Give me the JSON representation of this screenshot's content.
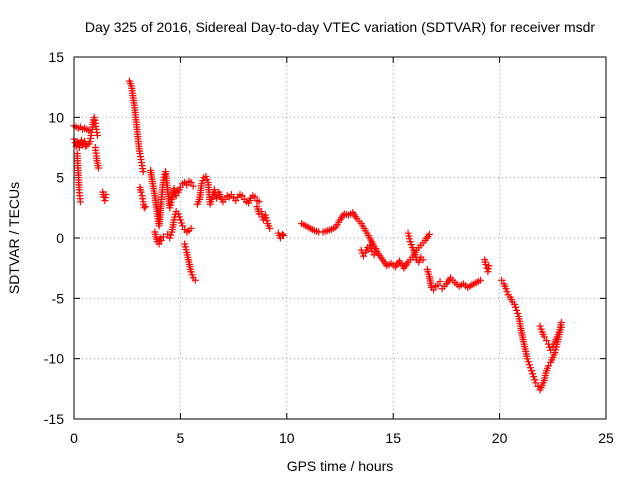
{
  "chart_data": {
    "type": "scatter",
    "title": "Day 325 of 2016, Sidereal Day-to-day VTEC variation (SDTVAR) for receiver msdr",
    "xlabel": "GPS time / hours",
    "ylabel": "SDTVAR / TECUs",
    "xlim": [
      0,
      25
    ],
    "ylim": [
      -15,
      15
    ],
    "xticks": [
      0,
      5,
      10,
      15,
      20,
      25
    ],
    "yticks": [
      -15,
      -10,
      -5,
      0,
      5,
      10,
      15
    ],
    "xtick_labels": [
      "0",
      "5",
      "10",
      "15",
      "20",
      "25"
    ],
    "ytick_labels": [
      "-15",
      "-10",
      "-5",
      "0",
      "5",
      "10",
      "15"
    ],
    "grid": true,
    "marker": "+",
    "color": "#ff0000",
    "segments": [
      {
        "name": "s1",
        "x": [
          0.0,
          0.1,
          0.2,
          0.3,
          0.4,
          0.5,
          0.6,
          0.7
        ],
        "y": [
          9.3,
          9.2,
          9.1,
          9.2,
          9.0,
          9.1,
          9.0,
          8.9
        ]
      },
      {
        "name": "s2",
        "x": [
          0.0,
          0.05,
          0.1,
          0.15,
          0.2,
          0.25,
          0.3,
          0.35,
          0.4,
          0.45,
          0.5,
          0.55,
          0.6
        ],
        "y": [
          8.2,
          7.9,
          7.6,
          8.0,
          7.8,
          7.5,
          7.9,
          8.1,
          7.7,
          7.8,
          8.0,
          7.6,
          7.7
        ]
      },
      {
        "name": "s3",
        "x": [
          0.15,
          0.18,
          0.21,
          0.24,
          0.27,
          0.3
        ],
        "y": [
          7.0,
          6.0,
          5.0,
          4.0,
          3.5,
          3.0
        ]
      },
      {
        "name": "s4",
        "x": [
          0.7,
          0.75,
          0.8,
          0.85,
          0.9,
          0.95,
          1.0,
          1.05,
          1.1
        ],
        "y": [
          7.8,
          8.0,
          8.5,
          9.0,
          9.6,
          10.0,
          9.5,
          9.0,
          8.5
        ]
      },
      {
        "name": "s5",
        "x": [
          1.0,
          1.05,
          1.1,
          1.15
        ],
        "y": [
          7.5,
          6.8,
          6.2,
          5.8
        ]
      },
      {
        "name": "s6",
        "x": [
          1.35,
          1.4,
          1.45,
          1.5
        ],
        "y": [
          3.8,
          3.4,
          3.1,
          3.6
        ]
      },
      {
        "name": "s7",
        "x": [
          2.6,
          2.7,
          2.75,
          2.8,
          2.85,
          2.9,
          2.95,
          3.0,
          3.05,
          3.1,
          3.15,
          3.2,
          3.25
        ],
        "y": [
          13.0,
          12.6,
          12.0,
          11.4,
          10.8,
          10.0,
          9.2,
          8.4,
          7.6,
          7.0,
          6.5,
          6.0,
          5.5
        ]
      },
      {
        "name": "s8",
        "x": [
          3.1,
          3.15,
          3.2,
          3.25,
          3.3,
          3.35
        ],
        "y": [
          4.2,
          3.8,
          3.5,
          3.0,
          2.5,
          2.6
        ]
      },
      {
        "name": "s9",
        "x": [
          3.6,
          3.7,
          3.8,
          3.9,
          4.0,
          4.1,
          4.2,
          4.3,
          4.4,
          4.5,
          4.6,
          4.7,
          4.8,
          4.9,
          5.0,
          5.1,
          5.2,
          5.3,
          5.4,
          5.5,
          5.6
        ],
        "y": [
          5.6,
          4.5,
          3.5,
          2.2,
          1.0,
          3.0,
          4.8,
          5.5,
          4.0,
          2.5,
          3.2,
          4.1,
          3.5,
          3.8,
          4.2,
          4.5,
          4.6,
          4.4,
          4.7,
          4.6,
          4.3
        ]
      },
      {
        "name": "s10",
        "x": [
          3.8,
          3.9,
          4.0,
          4.05,
          4.1,
          4.2
        ],
        "y": [
          0.5,
          -0.3,
          -0.5,
          0.0,
          -0.2,
          0.1
        ]
      },
      {
        "name": "s11",
        "x": [
          4.4,
          4.5,
          4.6,
          4.7,
          4.8,
          4.9,
          5.0,
          5.1,
          5.2,
          5.3,
          5.4,
          5.5
        ],
        "y": [
          0.3,
          0.0,
          0.5,
          1.5,
          2.2,
          2.0,
          1.5,
          1.0,
          0.7,
          0.5,
          0.6,
          0.8
        ]
      },
      {
        "name": "s12",
        "x": [
          5.2,
          5.3,
          5.4,
          5.5,
          5.6,
          5.7
        ],
        "y": [
          -0.5,
          -1.2,
          -2.0,
          -2.8,
          -3.3,
          -3.5
        ]
      },
      {
        "name": "s13",
        "x": [
          5.8,
          5.9,
          6.0,
          6.1,
          6.2,
          6.3,
          6.4,
          6.5,
          6.6,
          6.7,
          6.8,
          6.9,
          7.0,
          7.1,
          7.2,
          7.3,
          7.4,
          7.5,
          7.6,
          7.7,
          7.8,
          7.9,
          8.0,
          8.1,
          8.2,
          8.3,
          8.4,
          8.5,
          8.6,
          8.7
        ],
        "y": [
          2.8,
          3.2,
          4.5,
          5.0,
          5.1,
          4.6,
          2.8,
          3.4,
          4.0,
          3.3,
          3.8,
          3.4,
          3.0,
          3.2,
          3.5,
          3.4,
          3.6,
          3.3,
          3.1,
          3.4,
          3.6,
          3.5,
          3.2,
          3.0,
          2.9,
          3.3,
          3.5,
          3.4,
          3.1,
          3.0
        ]
      },
      {
        "name": "s14",
        "x": [
          8.6,
          8.7,
          8.8,
          8.9,
          9.0,
          9.1,
          9.2
        ],
        "y": [
          2.6,
          2.0,
          2.2,
          1.5,
          1.9,
          1.2,
          0.8
        ]
      },
      {
        "name": "s15",
        "x": [
          9.6,
          9.7,
          9.8,
          9.85
        ],
        "y": [
          0.4,
          0.0,
          0.3,
          0.2
        ]
      },
      {
        "name": "s16",
        "x": [
          10.7,
          10.9,
          11.1,
          11.3,
          11.5,
          11.7,
          11.9,
          12.1,
          12.3,
          12.5,
          12.7,
          12.9,
          13.1,
          13.3,
          13.5,
          13.7,
          13.9,
          14.1,
          14.3,
          14.5,
          14.7,
          14.9,
          15.1,
          15.3,
          15.5,
          15.7,
          15.9,
          16.1,
          16.3,
          16.5,
          16.7
        ],
        "y": [
          1.2,
          1.0,
          0.8,
          0.6,
          0.5,
          0.5,
          0.6,
          0.7,
          0.9,
          1.5,
          2.0,
          1.9,
          2.1,
          1.6,
          1.2,
          0.6,
          0.0,
          -0.7,
          -1.3,
          -1.8,
          -2.3,
          -2.1,
          -2.4,
          -1.9,
          -2.5,
          -2.0,
          -1.6,
          -1.0,
          -0.6,
          -0.2,
          0.3
        ]
      },
      {
        "name": "s17",
        "x": [
          13.5,
          13.6,
          13.7,
          13.8,
          13.9,
          14.0,
          14.1,
          14.2
        ],
        "y": [
          -1.0,
          -1.5,
          -1.2,
          -0.8,
          -0.6,
          -1.1,
          -1.4,
          -0.9
        ]
      },
      {
        "name": "s18",
        "x": [
          15.7,
          15.8,
          15.9,
          16.0,
          16.1,
          16.2,
          16.3,
          16.4
        ],
        "y": [
          0.4,
          -0.3,
          -0.8,
          -1.2,
          -1.8,
          -2.0,
          -1.6,
          -1.8
        ]
      },
      {
        "name": "s19",
        "x": [
          16.6,
          16.7,
          16.8,
          16.9,
          17.0,
          17.1,
          17.2
        ],
        "y": [
          -2.6,
          -3.2,
          -4.1,
          -4.3,
          -4.0,
          -3.9,
          -3.6
        ]
      },
      {
        "name": "s20",
        "x": [
          17.3,
          17.5,
          17.7,
          17.9,
          18.1,
          18.3,
          18.5,
          18.7,
          18.9,
          19.1
        ],
        "y": [
          -4.2,
          -3.8,
          -3.3,
          -3.7,
          -4.0,
          -3.8,
          -4.1,
          -3.9,
          -3.7,
          -3.5
        ]
      },
      {
        "name": "s21",
        "x": [
          19.3,
          19.35,
          19.4,
          19.45,
          19.5
        ],
        "y": [
          -1.8,
          -2.2,
          -2.5,
          -2.8,
          -2.3
        ]
      },
      {
        "name": "s22",
        "x": [
          20.1,
          20.2,
          20.3,
          20.4,
          20.5,
          20.6,
          20.7,
          20.8,
          20.9,
          21.0,
          21.1,
          21.2,
          21.3,
          21.4,
          21.5,
          21.6,
          21.7,
          21.8,
          21.9,
          22.0,
          22.1,
          22.2,
          22.3,
          22.4,
          22.5,
          22.6,
          22.7,
          22.8,
          22.9
        ],
        "y": [
          -3.5,
          -3.8,
          -4.2,
          -4.7,
          -4.9,
          -5.3,
          -5.5,
          -6.0,
          -6.5,
          -7.5,
          -8.4,
          -9.2,
          -10.0,
          -10.5,
          -11.0,
          -11.5,
          -12.0,
          -12.3,
          -12.6,
          -12.2,
          -11.8,
          -11.0,
          -10.6,
          -10.3,
          -9.9,
          -9.5,
          -8.8,
          -8.0,
          -7.0
        ]
      },
      {
        "name": "s23",
        "x": [
          21.9,
          22.0,
          22.1,
          22.2,
          22.3,
          22.4,
          22.5,
          22.6,
          22.7,
          22.8,
          22.9
        ],
        "y": [
          -7.3,
          -7.8,
          -8.2,
          -8.5,
          -8.8,
          -9.3,
          -9.0,
          -8.6,
          -8.2,
          -7.8,
          -7.4
        ]
      }
    ]
  }
}
